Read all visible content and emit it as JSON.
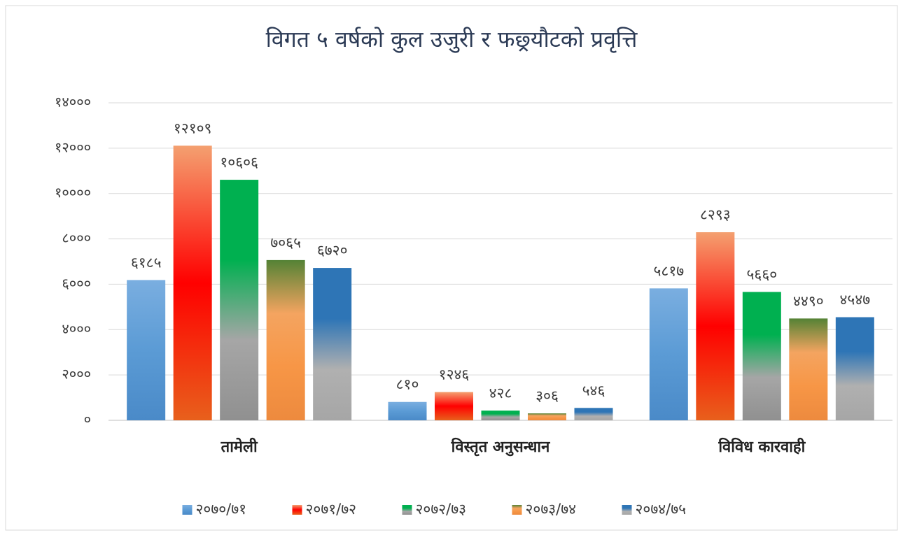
{
  "chart_data": {
    "type": "bar",
    "title": "विगत ५ वर्षको कुल उजुरी र फछ्र्यौटको प्रवृत्ति",
    "categories": [
      "तामेली",
      "विस्तृत अनुसन्धान",
      "विविध कारवाही"
    ],
    "series": [
      {
        "name": "२०७०/७१",
        "colors": [
          "#7aaee0",
          "#5b9bd5",
          "#4a8ac8"
        ],
        "values": [
          6185,
          810,
          5817
        ],
        "value_labels": [
          "६१८५",
          "८१०",
          "५८१७"
        ]
      },
      {
        "name": "२०७१/७२",
        "colors": [
          "#f4a070",
          "#ff0000",
          "#e8601c"
        ],
        "values": [
          12109,
          1246,
          8293
        ],
        "value_labels": [
          "१२१०९",
          "१२४६",
          "८२९३"
        ]
      },
      {
        "name": "२०७२/७३",
        "colors": [
          "#00b050",
          "#00b050",
          "#a6a6a6",
          "#909090"
        ],
        "values": [
          10606,
          428,
          5660
        ],
        "value_labels": [
          "१०६०६",
          "४२८",
          "५६६०"
        ]
      },
      {
        "name": "२०७३/७४",
        "colors": [
          "#548235",
          "#f4a460",
          "#f79646",
          "#ed8a3e"
        ],
        "values": [
          7065,
          306,
          4490
        ],
        "value_labels": [
          "७०६५",
          "३०६",
          "४४९०"
        ]
      },
      {
        "name": "२०७४/७५",
        "colors": [
          "#2e75b6",
          "#2e75b6",
          "#b0b0b0",
          "#a6a6a6"
        ],
        "values": [
          6720,
          546,
          4547
        ],
        "value_labels": [
          "६७२०",
          "५४६",
          "४५४७"
        ]
      }
    ],
    "ylim": [
      0,
      14000
    ],
    "yticks": [
      {
        "value": 0,
        "label": "०"
      },
      {
        "value": 2000,
        "label": "२०००"
      },
      {
        "value": 4000,
        "label": "४०००"
      },
      {
        "value": 6000,
        "label": "६०००"
      },
      {
        "value": 8000,
        "label": "८०००"
      },
      {
        "value": 10000,
        "label": "१००००"
      },
      {
        "value": 12000,
        "label": "१२०००"
      },
      {
        "value": 14000,
        "label": "१४०००"
      }
    ],
    "grid": true,
    "legend": "bottom"
  }
}
